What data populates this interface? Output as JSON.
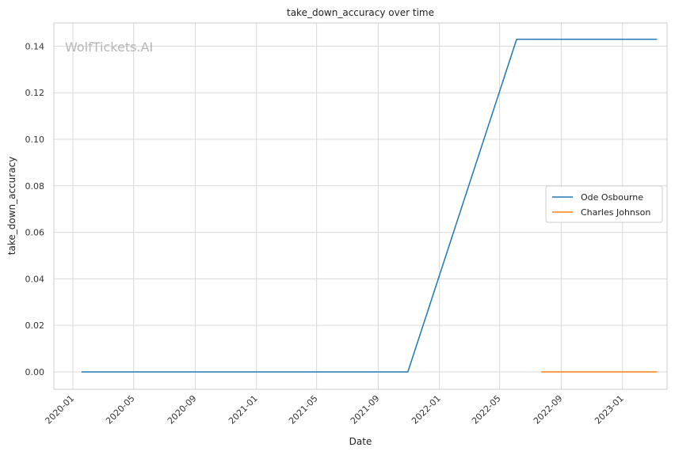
{
  "chart_data": {
    "type": "line",
    "title": "take_down_accuracy over time",
    "xlabel": "Date",
    "ylabel": "take_down_accuracy",
    "watermark": "WolfTickets.AI",
    "x_ticks": [
      "2020-01",
      "2020-05",
      "2020-09",
      "2021-01",
      "2021-05",
      "2021-09",
      "2022-01",
      "2022-05",
      "2022-09",
      "2023-01"
    ],
    "y_ticks": [
      "0.00",
      "0.02",
      "0.04",
      "0.06",
      "0.08",
      "0.10",
      "0.12",
      "0.14"
    ],
    "xlim": [
      "2019-11-24",
      "2023-03-31"
    ],
    "ylim": [
      -0.0075,
      0.15
    ],
    "grid": true,
    "legend_position": "center-right",
    "series": [
      {
        "name": "Ode Osbourne",
        "color": "#1f77b4",
        "points": [
          {
            "x": "2020-01-18",
            "y": 0.0
          },
          {
            "x": "2021-10-30",
            "y": 0.0
          },
          {
            "x": "2022-06-04",
            "y": 0.143
          },
          {
            "x": "2023-03-11",
            "y": 0.143
          }
        ]
      },
      {
        "name": "Charles Johnson",
        "color": "#ff7f0e",
        "points": [
          {
            "x": "2022-07-23",
            "y": 0.0
          },
          {
            "x": "2023-03-11",
            "y": 0.0
          }
        ]
      }
    ]
  }
}
